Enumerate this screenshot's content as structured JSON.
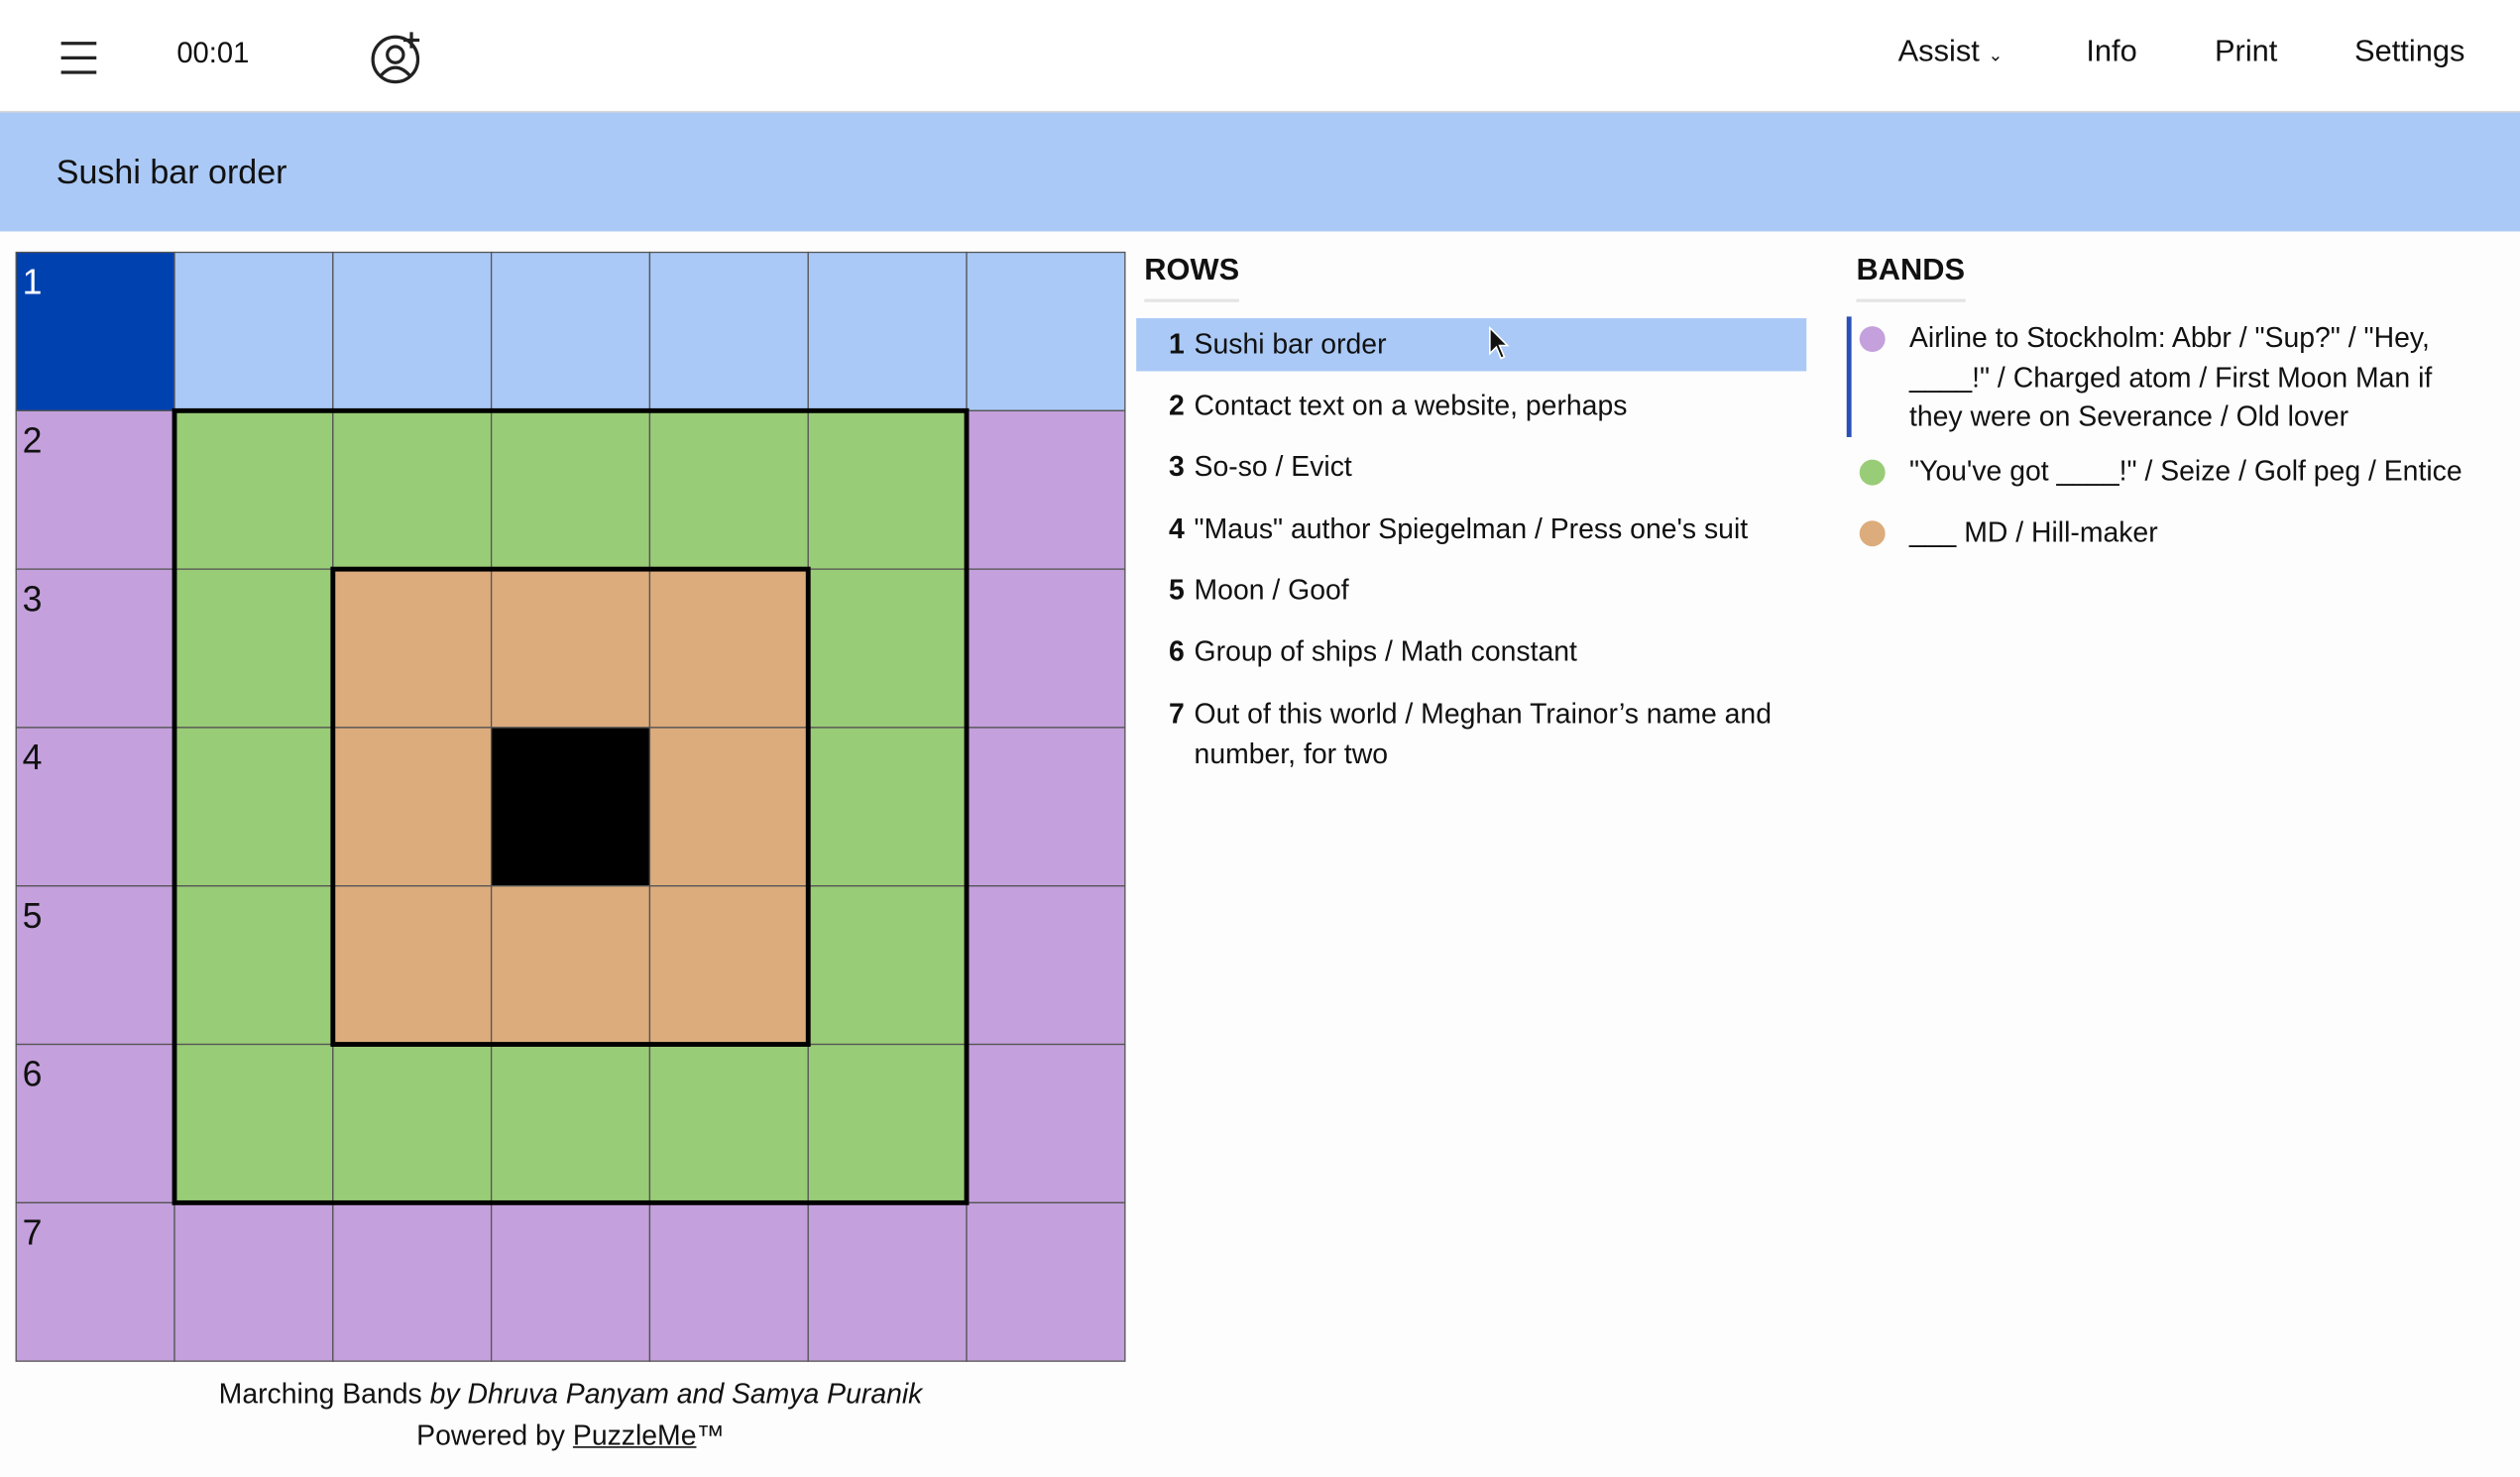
{
  "header": {
    "timer": "00:01",
    "menu": [
      "Assist",
      "Info",
      "Print",
      "Settings"
    ]
  },
  "current_clue": "Sushi bar order",
  "grid": {
    "numbers": [
      1,
      2,
      3,
      4,
      5,
      6,
      7
    ]
  },
  "rows": {
    "heading": "ROWS",
    "clues": [
      {
        "number": 1,
        "text": "Sushi bar order"
      },
      {
        "number": 2,
        "text": "Contact text on a website, perhaps"
      },
      {
        "number": 3,
        "text": "So-so / Evict"
      },
      {
        "number": 4,
        "text": "\"Maus\" author Spiegelman / Press one's suit"
      },
      {
        "number": 5,
        "text": "Moon / Goof"
      },
      {
        "number": 6,
        "text": "Group of ships / Math constant"
      },
      {
        "number": 7,
        "text": "Out of this world / Meghan Trainor’s name and number, for two"
      }
    ]
  },
  "bands": {
    "heading": "BANDS",
    "clues": [
      "Airline to Stockholm: Abbr / \"Sup?\" / \"Hey, ____!\" / Charged atom / First Moon Man if they were on Severance / Old lover",
      "\"You've got ____!\" / Seize / Golf peg / Entice",
      "___ MD / Hill-maker"
    ]
  },
  "footer": {
    "title": "Marching Bands",
    "byline": "by Dhruva Panyam and Samya Puranik",
    "powered": "Powered by",
    "brand": "PuzzleMe",
    "tm": "™"
  }
}
